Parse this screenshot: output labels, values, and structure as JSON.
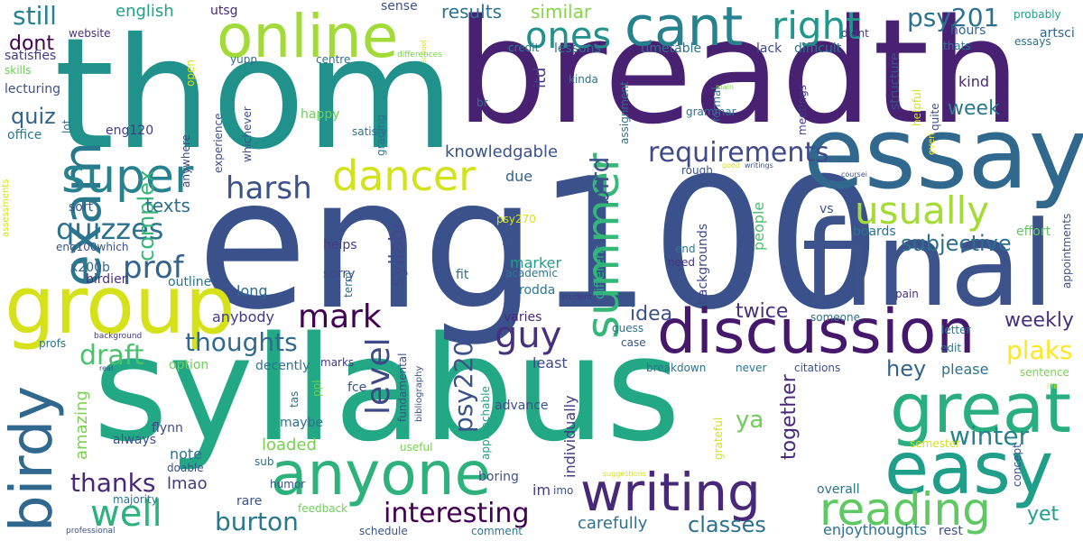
{
  "words": [
    {
      "text": "syllabus",
      "color": "#22a884"
    },
    {
      "text": "eng100",
      "color": "#3b518b"
    },
    {
      "text": "breadth",
      "color": "#482173"
    },
    {
      "text": "thom",
      "color": "#21918c"
    },
    {
      "text": "final",
      "color": "#3b528b"
    },
    {
      "text": "essay",
      "color": "#31688e"
    },
    {
      "text": "discussion",
      "color": "#46186b"
    },
    {
      "text": "online",
      "color": "#a2da37"
    },
    {
      "text": "cant",
      "color": "#26828e"
    },
    {
      "text": "group",
      "color": "#d5e21a"
    },
    {
      "text": "anyone",
      "color": "#2db27d"
    },
    {
      "text": "great",
      "color": "#29af7f"
    },
    {
      "text": "easy",
      "color": "#1f9e89"
    },
    {
      "text": "writing",
      "color": "#482878"
    },
    {
      "text": "exam",
      "color": "#2a788e"
    },
    {
      "text": "super",
      "color": "#26828e"
    },
    {
      "text": "birdy",
      "color": "#31688e"
    },
    {
      "text": "summer",
      "color": "#35b779"
    },
    {
      "text": "dancer",
      "color": "#d2e21b"
    },
    {
      "text": "reading",
      "color": "#5ec962"
    },
    {
      "text": "usually",
      "color": "#a5db36"
    },
    {
      "text": "right",
      "color": "#1f988b"
    },
    {
      "text": "ones",
      "color": "#21918c"
    },
    {
      "text": "quizzes",
      "color": "#2c728e"
    },
    {
      "text": "harsh",
      "color": "#3b528b"
    },
    {
      "text": "prof",
      "color": "#33638d"
    },
    {
      "text": "mark",
      "color": "#440154"
    },
    {
      "text": "guy",
      "color": "#46317e"
    },
    {
      "text": "level",
      "color": "#3e4989"
    },
    {
      "text": "well",
      "color": "#2db27d"
    },
    {
      "text": "burton",
      "color": "#2a788e"
    },
    {
      "text": "interesting",
      "color": "#440154"
    },
    {
      "text": "requirements",
      "color": "#3e4a89"
    },
    {
      "text": "subjective",
      "color": "#2d708e"
    },
    {
      "text": "winter",
      "color": "#26828e"
    },
    {
      "text": "plaks",
      "color": "#fde725"
    },
    {
      "text": "weekly",
      "color": "#46317e"
    },
    {
      "text": "thoughts",
      "color": "#31688e"
    },
    {
      "text": "thanks",
      "color": "#482878"
    },
    {
      "text": "draft",
      "color": "#4ac16d"
    },
    {
      "text": "complex",
      "color": "#35b779"
    },
    {
      "text": "still",
      "color": "#26828e"
    },
    {
      "text": "dont",
      "color": "#440154"
    },
    {
      "text": "quiz",
      "color": "#33638d"
    },
    {
      "text": "psy201",
      "color": "#2c728e"
    },
    {
      "text": "psy220",
      "color": "#3b528b"
    },
    {
      "text": "bird",
      "color": "#3b528b"
    },
    {
      "text": "idea",
      "color": "#3b528b"
    },
    {
      "text": "twice",
      "color": "#46317e"
    },
    {
      "text": "yet",
      "color": "#1f9e89"
    },
    {
      "text": "hey",
      "color": "#33638d"
    },
    {
      "text": "ya",
      "color": "#6ece58"
    },
    {
      "text": "classes",
      "color": "#2c728e"
    },
    {
      "text": "together",
      "color": "#482878"
    },
    {
      "text": "week",
      "color": "#2a788e"
    },
    {
      "text": "kind",
      "color": "#482878"
    },
    {
      "text": "syllabi",
      "color": "#3e4989"
    },
    {
      "text": "texts",
      "color": "#2d708e"
    },
    {
      "text": "results",
      "color": "#2c728e"
    },
    {
      "text": "similar",
      "color": "#86d549"
    },
    {
      "text": "english",
      "color": "#1fa088"
    },
    {
      "text": "knowledgable",
      "color": "#3b528b"
    },
    {
      "text": "individually",
      "color": "#443a83"
    },
    {
      "text": "amazing",
      "color": "#7ad151"
    },
    {
      "text": "carefully",
      "color": "#2c728e"
    },
    {
      "text": "enjoythoughts",
      "color": "#2c728e"
    },
    {
      "text": "lmao",
      "color": "#443a83"
    },
    {
      "text": "loaded",
      "color": "#7ad151"
    },
    {
      "text": "note",
      "color": "#2c728e"
    },
    {
      "text": "itd",
      "color": "#443a83"
    },
    {
      "text": "gc",
      "color": "#3b528b"
    },
    {
      "text": "long",
      "color": "#31688e"
    },
    {
      "text": "due",
      "color": "#33638d"
    },
    {
      "text": "anybody",
      "color": "#443a83"
    },
    {
      "text": "sort",
      "color": "#3b528b"
    },
    {
      "text": "option",
      "color": "#6ece58"
    },
    {
      "text": "please",
      "color": "#2c728e"
    },
    {
      "text": "least",
      "color": "#3e4989"
    },
    {
      "text": "marker",
      "color": "#1f9e89"
    },
    {
      "text": "rodda",
      "color": "#2a788e"
    },
    {
      "text": "varies",
      "color": "#482878"
    },
    {
      "text": "psy270",
      "color": "#d2e21b"
    },
    {
      "text": "different",
      "color": "#29af7f"
    },
    {
      "text": "fit",
      "color": "#2c728e"
    },
    {
      "text": "people",
      "color": "#4ac16d"
    },
    {
      "text": "backgrounds",
      "color": "#3e4989"
    },
    {
      "text": "end",
      "color": "#2a788e"
    },
    {
      "text": "need",
      "color": "#46317e"
    },
    {
      "text": "boards",
      "color": "#2c728e"
    },
    {
      "text": "effort",
      "color": "#5ec962"
    },
    {
      "text": "vs",
      "color": "#3b528b"
    },
    {
      "text": "helps",
      "color": "#443a83"
    },
    {
      "text": "sorry",
      "color": "#3e4989"
    },
    {
      "text": "x200b",
      "color": "#31688e"
    },
    {
      "text": "eng100which",
      "color": "#3b528b"
    },
    {
      "text": "birdier",
      "color": "#46317e"
    },
    {
      "text": "outline",
      "color": "#2c728e"
    },
    {
      "text": "term",
      "color": "#2c728e"
    },
    {
      "text": "academic",
      "color": "#2a788e"
    },
    {
      "text": "student",
      "color": "#443a83"
    },
    {
      "text": "someone",
      "color": "#2c728e"
    },
    {
      "text": "pain",
      "color": "#46317e"
    },
    {
      "text": "appointments",
      "color": "#3b528b"
    },
    {
      "text": "probably",
      "color": "#1fa088"
    },
    {
      "text": "artsci",
      "color": "#33638d"
    },
    {
      "text": "essays",
      "color": "#2c728e"
    },
    {
      "text": "hours",
      "color": "#33638d"
    },
    {
      "text": "thats",
      "color": "#2a788e"
    },
    {
      "text": "didnt",
      "color": "#443a83"
    },
    {
      "text": "difficult",
      "color": "#2c728e"
    },
    {
      "text": "lack",
      "color": "#3e4989"
    },
    {
      "text": "structure",
      "color": "#3b528b"
    },
    {
      "text": "helpful",
      "color": "#d2e21b"
    },
    {
      "text": "quite",
      "color": "#3b528b"
    },
    {
      "text": "even",
      "color": "#fde725"
    },
    {
      "text": "formal",
      "color": "#2c728e"
    },
    {
      "text": "meetings",
      "color": "#443a83"
    },
    {
      "text": "rough",
      "color": "#3b528b"
    },
    {
      "text": "good",
      "color": "#d2e21b"
    },
    {
      "text": "writings",
      "color": "#3b528b"
    },
    {
      "text": "coursei",
      "color": "#3b528b"
    },
    {
      "text": "main",
      "color": "#86d549"
    },
    {
      "text": "timetable",
      "color": "#2c728e"
    },
    {
      "text": "lessons",
      "color": "#2c728e"
    },
    {
      "text": "credit",
      "color": "#2a788e"
    },
    {
      "text": "kinda",
      "color": "#2c728e"
    },
    {
      "text": "sense",
      "color": "#3b528b"
    },
    {
      "text": "utsg",
      "color": "#482878"
    },
    {
      "text": "website",
      "color": "#46317e"
    },
    {
      "text": "school",
      "color": "#d2e21b"
    },
    {
      "text": "differences",
      "color": "#7ad151"
    },
    {
      "text": "centre",
      "color": "#2c728e"
    },
    {
      "text": "yupp",
      "color": "#2c728e"
    },
    {
      "text": "open",
      "color": "#d2e21b"
    },
    {
      "text": "satisfies",
      "color": "#443a83"
    },
    {
      "text": "skills",
      "color": "#6ece58"
    },
    {
      "text": "lecturing",
      "color": "#3b528b"
    },
    {
      "text": "lot",
      "color": "#2c728e"
    },
    {
      "text": "office",
      "color": "#2a788e"
    },
    {
      "text": "eng120",
      "color": "#443a83"
    },
    {
      "text": "happy",
      "color": "#6ece58"
    },
    {
      "text": "experience",
      "color": "#3b528b"
    },
    {
      "text": "whichever",
      "color": "#3b528b"
    },
    {
      "text": "anywhere",
      "color": "#3e4989"
    },
    {
      "text": "satisfy",
      "color": "#2c728e"
    },
    {
      "text": "grading",
      "color": "#2c728e"
    },
    {
      "text": "br",
      "color": "#2c728e"
    },
    {
      "text": "assignment",
      "color": "#2c728e"
    },
    {
      "text": "grammar",
      "color": "#2c728e"
    },
    {
      "text": "real",
      "color": "#3b528b"
    },
    {
      "text": "assessments",
      "color": "#d2e21b"
    },
    {
      "text": "background",
      "color": "#443a83"
    },
    {
      "text": "profs",
      "color": "#2c728e"
    },
    {
      "text": "decently",
      "color": "#2c728e"
    },
    {
      "text": "marks",
      "color": "#443a83"
    },
    {
      "text": "tas",
      "color": "#2c728e"
    },
    {
      "text": "ppl",
      "color": "#6ece58"
    },
    {
      "text": "maybe",
      "color": "#2c728e"
    },
    {
      "text": "fce",
      "color": "#3b528b"
    },
    {
      "text": "fundamental",
      "color": "#3b528b"
    },
    {
      "text": "bibliography",
      "color": "#3b528b"
    },
    {
      "text": "useful",
      "color": "#7ad151"
    },
    {
      "text": "approachable",
      "color": "#1fa088"
    },
    {
      "text": "flynn",
      "color": "#3e4989"
    },
    {
      "text": "always",
      "color": "#3b528b"
    },
    {
      "text": "doable",
      "color": "#3b528b"
    },
    {
      "text": "sub",
      "color": "#2c728e"
    },
    {
      "text": "majority",
      "color": "#2c728e"
    },
    {
      "text": "rare",
      "color": "#3b528b"
    },
    {
      "text": "humor",
      "color": "#3b528b"
    },
    {
      "text": "feedback",
      "color": "#6ece58"
    },
    {
      "text": "professional",
      "color": "#3b528b"
    },
    {
      "text": "schedule",
      "color": "#3b528b"
    },
    {
      "text": "comment",
      "color": "#2a788e"
    },
    {
      "text": "boring",
      "color": "#3b528b"
    },
    {
      "text": "im",
      "color": "#443a83"
    },
    {
      "text": "imo",
      "color": "#3b528b"
    },
    {
      "text": "advance",
      "color": "#3b528b"
    },
    {
      "text": "guess",
      "color": "#2c728e"
    },
    {
      "text": "case",
      "color": "#3b528b"
    },
    {
      "text": "breakdown",
      "color": "#2c728e"
    },
    {
      "text": "never",
      "color": "#2c728e"
    },
    {
      "text": "citations",
      "color": "#3b528b"
    },
    {
      "text": "letter",
      "color": "#2c728e"
    },
    {
      "text": "edit",
      "color": "#2a788e"
    },
    {
      "text": "sentence",
      "color": "#7ad151"
    },
    {
      "text": "life",
      "color": "#d2e21b"
    },
    {
      "text": "grateful",
      "color": "#d2e21b"
    },
    {
      "text": "semester",
      "color": "#d2e21b"
    },
    {
      "text": "concept",
      "color": "#3b528b"
    },
    {
      "text": "suggestions",
      "color": "#d2e21b"
    },
    {
      "text": "overall",
      "color": "#2c728e"
    },
    {
      "text": "rest",
      "color": "#3b528b"
    }
  ]
}
